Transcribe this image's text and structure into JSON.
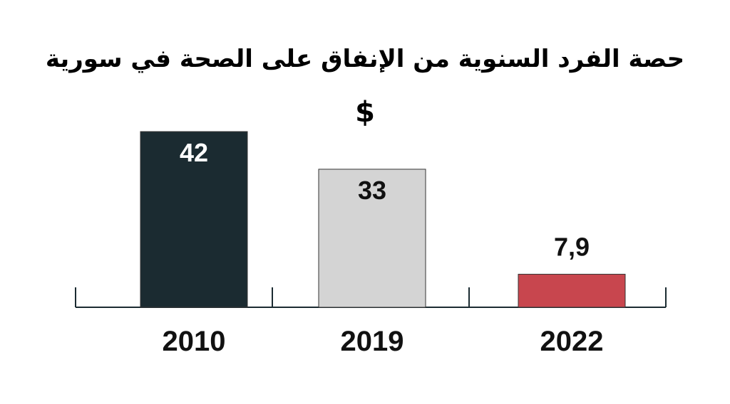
{
  "chart_data": {
    "type": "bar",
    "title": "حصة الفرد السنوية من الإنفاق على الصحة في سورية",
    "unit": "$",
    "categories": [
      "2010",
      "2019",
      "2022"
    ],
    "values": [
      42,
      33,
      7.9
    ],
    "value_labels": [
      "42",
      "33",
      "7,9"
    ],
    "bar_colors": [
      "#1b2b31",
      "#d4d4d4",
      "#c8464e"
    ],
    "value_label_colors": [
      "#ffffff",
      "#111111",
      "#111111"
    ],
    "value_label_position": [
      "inside",
      "inside",
      "outside"
    ],
    "axis_color": "#1b2b31",
    "grid": false,
    "legend": "none"
  }
}
